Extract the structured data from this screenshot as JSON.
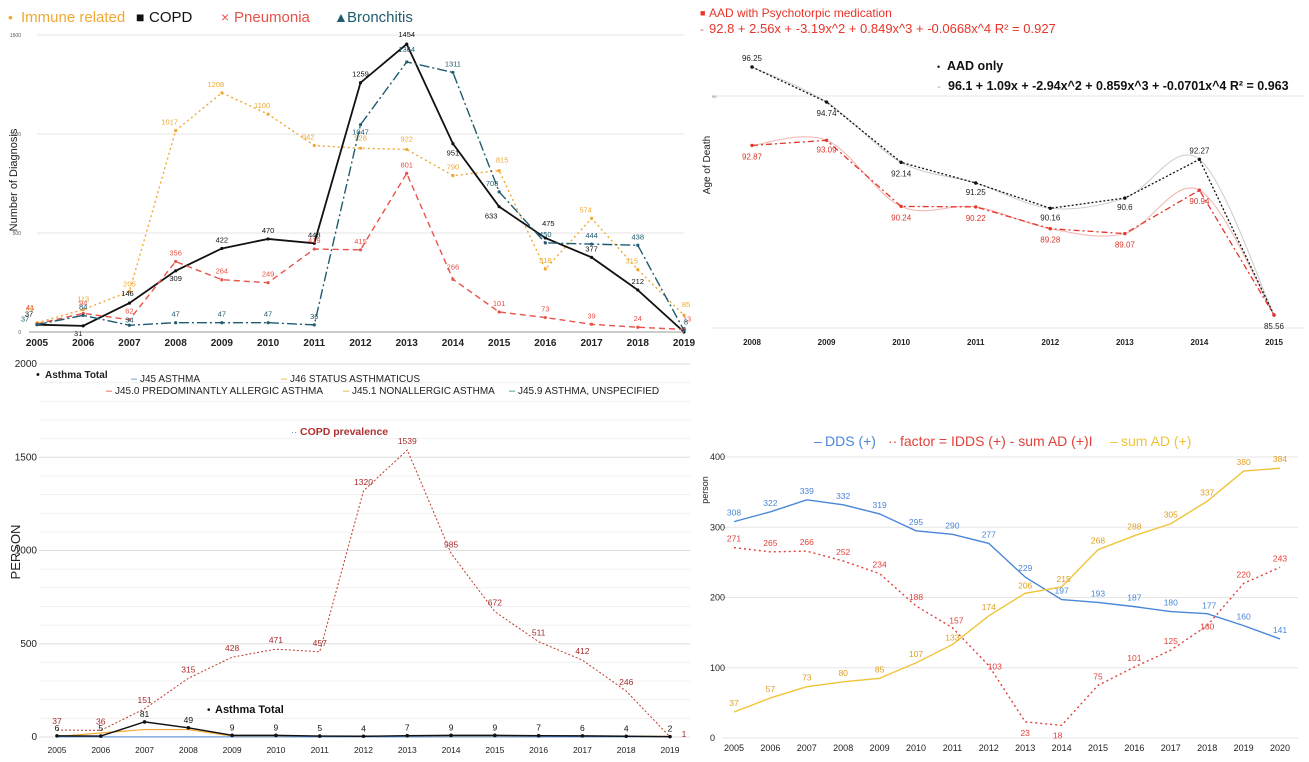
{
  "chart_data": [
    {
      "type": "line",
      "legend_position": "top-left",
      "ylabel": "Number of Diagnosis",
      "ylim": [
        0,
        1500
      ],
      "yticks": [
        0,
        500,
        1000,
        1500
      ],
      "grid": true,
      "categories": [
        "2005",
        "2006",
        "2007",
        "2008",
        "2009",
        "2010",
        "2011",
        "2012",
        "2013",
        "2014",
        "2015",
        "2016",
        "2017",
        "2018",
        "2019"
      ],
      "series": [
        {
          "name": "Immune related",
          "color": "#f0a830",
          "marker": "•",
          "dash": "2,3",
          "values": [
            46,
            113,
            205,
            1017,
            1208,
            1100,
            942,
            928,
            922,
            790,
            815,
            318,
            574,
            315,
            85
          ]
        },
        {
          "name": "COPD",
          "color": "#111111",
          "marker": "■",
          "dash": "",
          "values": [
            37,
            31,
            146,
            309,
            422,
            470,
            448,
            1259,
            1454,
            951,
            633,
            475,
            377,
            212,
            0
          ]
        },
        {
          "name": "Pneumonia",
          "color": "#e8534a",
          "marker": "×",
          "dash": "6,4",
          "values": [
            41,
            94,
            62,
            356,
            264,
            249,
            419,
            415,
            801,
            266,
            101,
            73,
            39,
            24,
            13
          ]
        },
        {
          "name": "Bronchitis",
          "color": "#1f5c6e",
          "marker": "▲",
          "dash": "10,3,2,3",
          "values": [
            37,
            84,
            34,
            47,
            47,
            47,
            36,
            1047,
            1364,
            1311,
            708,
            450,
            444,
            438,
            8
          ]
        }
      ]
    },
    {
      "type": "line",
      "ylabel": "Age of Death",
      "ylim": [
        85,
        97.5
      ],
      "ytick_label": "95",
      "categories": [
        "2008",
        "2009",
        "2010",
        "2011",
        "2012",
        "2013",
        "2014",
        "2015"
      ],
      "series": [
        {
          "name": "AAD with Psychotorpic medication",
          "color": "#e8342a",
          "marker": "■",
          "dash": "6,3,2,3",
          "equation": "92.8 + 2.56x + -3.19x^2 + 0.849x^3 + -0.0668x^4 R² = 0.927",
          "values": [
            92.87,
            93.09,
            90.24,
            90.22,
            89.28,
            89.07,
            90.94,
            85.56
          ]
        },
        {
          "name": "AAD only",
          "color": "#111111",
          "marker": "•",
          "dash": "2,2",
          "equation": "96.1 + 1.09x + -2.94x^2 + 0.859x^3 + -0.0701x^4 R² = 0.963",
          "values": [
            96.25,
            94.74,
            92.14,
            91.25,
            90.16,
            90.6,
            92.27,
            85.56
          ]
        }
      ]
    },
    {
      "type": "line",
      "ylabel": "PERSON",
      "ylim": [
        0,
        2000
      ],
      "yticks": [
        0,
        500,
        1000,
        1500,
        2000
      ],
      "categories": [
        "2005",
        "2006",
        "2007",
        "2008",
        "2009",
        "2010",
        "2011",
        "2012",
        "2013",
        "2014",
        "2015",
        "2016",
        "2017",
        "2018",
        "2019"
      ],
      "legend": [
        "Asthma Total",
        "J45 ASTHMA",
        "J46 STATUS ASTHMATICUS",
        "J45.0 PREDOMINANTLY ALLERGIC ASTHMA",
        "J45.1 NONALLERGIC ASTHMA",
        "J45.9 ASTHMA, UNSPECIFIED"
      ],
      "inline_labels": [
        "COPD prevalence",
        "Asthma Total"
      ],
      "series": [
        {
          "name": "COPD prevalence",
          "color": "#c0392b",
          "values": [
            37,
            36,
            151,
            315,
            428,
            471,
            457,
            1320,
            1539,
            985,
            672,
            511,
            412,
            246,
            1
          ]
        },
        {
          "name": "Asthma Total",
          "color": "#111111",
          "values": [
            6,
            5,
            81,
            49,
            9,
            9,
            5,
            4,
            7,
            9,
            9,
            7,
            6,
            4,
            2
          ]
        }
      ]
    },
    {
      "type": "line",
      "ylabel": "person",
      "ylim": [
        0,
        400
      ],
      "yticks": [
        0,
        100,
        200,
        300,
        400
      ],
      "categories": [
        "2005",
        "2006",
        "2007",
        "2008",
        "2009",
        "2010",
        "2011",
        "2012",
        "2013",
        "2014",
        "2015",
        "2016",
        "2017",
        "2018",
        "2019",
        "2020"
      ],
      "series": [
        {
          "name": "DDS (+)",
          "color": "#4a86d8",
          "marker": "–",
          "dash": "",
          "values": [
            308,
            322,
            339,
            332,
            319,
            295,
            290,
            277,
            229,
            197,
            193,
            187,
            180,
            177,
            160,
            141
          ]
        },
        {
          "name": "factor = IDDS (+) - sum AD (+)I",
          "color": "#e0413a",
          "marker": "··",
          "dash": "2,3",
          "values": [
            271,
            265,
            266,
            252,
            234,
            188,
            157,
            103,
            23,
            18,
            75,
            101,
            125,
            160,
            220,
            243
          ]
        },
        {
          "name": "sum AD (+)",
          "color": "#f0c43a",
          "marker": "–",
          "dash": "",
          "values": [
            37,
            57,
            73,
            80,
            85,
            107,
            133,
            174,
            206,
            215,
            268,
            288,
            305,
            337,
            380,
            384
          ]
        }
      ]
    }
  ]
}
